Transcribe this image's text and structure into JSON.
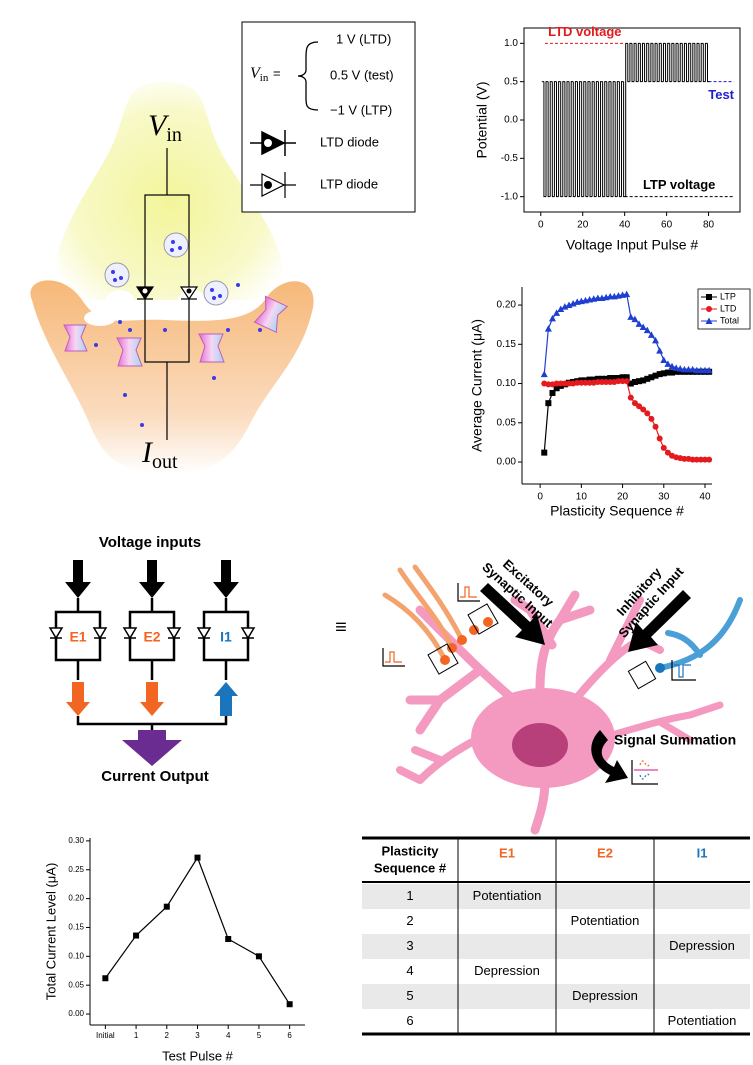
{
  "chart_data": [
    {
      "type": "line",
      "step": true,
      "xlabel": "Voltage Input Pulse #",
      "ylabel": "Potential (V)",
      "xlim": [
        -8,
        95
      ],
      "ylim": [
        -1.2,
        1.2
      ],
      "xticks": [
        0,
        20,
        40,
        60,
        80
      ],
      "yticks": [
        {
          "value": -1,
          "label": "-1.0"
        },
        -0.5,
        {
          "value": 0,
          "label": "0.0"
        },
        0.5,
        {
          "value": 1,
          "label": "1.0"
        }
      ],
      "x": [
        1,
        2,
        3,
        4,
        5,
        6,
        7,
        8,
        9,
        10,
        11,
        12,
        13,
        14,
        15,
        16,
        17,
        18,
        19,
        20,
        21,
        22,
        23,
        24,
        25,
        26,
        27,
        28,
        29,
        30,
        31,
        32,
        33,
        34,
        35,
        36,
        37,
        38,
        39,
        40,
        41,
        42,
        43,
        44,
        45,
        46,
        47,
        48,
        49,
        50,
        51,
        52,
        53,
        54,
        55,
        56,
        57,
        58,
        59,
        60,
        61,
        62,
        63,
        64,
        65,
        66,
        67,
        68,
        69,
        70,
        71,
        72,
        73,
        74,
        75,
        76,
        77,
        78,
        79,
        80
      ],
      "series": [
        {
          "color": "#000000",
          "values": [
            0.5,
            -1,
            0.5,
            -1,
            0.5,
            -1,
            0.5,
            -1,
            0.5,
            -1,
            0.5,
            -1,
            0.5,
            -1,
            0.5,
            -1,
            0.5,
            -1,
            0.5,
            -1,
            0.5,
            -1,
            0.5,
            -1,
            0.5,
            -1,
            0.5,
            -1,
            0.5,
            -1,
            0.5,
            -1,
            0.5,
            -1,
            0.5,
            -1,
            0.5,
            -1,
            0.5,
            -1,
            1,
            0.5,
            1,
            0.5,
            1,
            0.5,
            1,
            0.5,
            1,
            0.5,
            1,
            0.5,
            1,
            0.5,
            1,
            0.5,
            1,
            0.5,
            1,
            0.5,
            1,
            0.5,
            1,
            0.5,
            1,
            0.5,
            1,
            0.5,
            1,
            0.5,
            1,
            0.5,
            1,
            0.5,
            1,
            0.5,
            1,
            0.5,
            1,
            0.5
          ]
        }
      ],
      "reference_lines": [
        {
          "text": "LTD voltage",
          "y": 1,
          "x": [
            2,
            40
          ],
          "color": "#e31a1c"
        },
        {
          "text": "Test",
          "y": 0.5,
          "x": [
            80,
            92
          ],
          "color": "#1f1fd0"
        },
        {
          "text": "LTP voltage",
          "y": -1,
          "x": [
            40,
            92
          ],
          "color": "#000000"
        }
      ]
    },
    {
      "type": "line",
      "xlabel": "Plasticity Sequence #",
      "ylabel": "Average Current (μA)",
      "xlim": [
        -4.4,
        41.7
      ],
      "ylim": [
        -0.028,
        0.223
      ],
      "xticks": [
        0,
        10,
        20,
        30,
        40
      ],
      "yticks": [
        {
          "value": 0,
          "label": "0.00"
        },
        {
          "value": 0.05,
          "label": "0.05"
        },
        {
          "value": 0.1,
          "label": "0.10"
        },
        {
          "value": 0.15,
          "label": "0.15"
        },
        {
          "value": 0.2,
          "label": "0.20"
        }
      ],
      "legend": "upper right",
      "x": [
        1,
        2,
        3,
        4,
        5,
        6,
        7,
        8,
        9,
        10,
        11,
        12,
        13,
        14,
        15,
        16,
        17,
        18,
        19,
        20,
        21,
        22,
        23,
        24,
        25,
        26,
        27,
        28,
        29,
        30,
        31,
        32,
        33,
        34,
        35,
        36,
        37,
        38,
        39,
        40,
        41
      ],
      "series": [
        {
          "name": "LTP",
          "color": "#000000",
          "marker": "square",
          "values": [
            0.012,
            0.075,
            0.088,
            0.094,
            0.097,
            0.099,
            0.101,
            0.102,
            0.103,
            0.104,
            0.104,
            0.105,
            0.105,
            0.106,
            0.106,
            0.106,
            0.107,
            0.107,
            0.107,
            0.108,
            0.108,
            0.1,
            0.102,
            0.103,
            0.104,
            0.106,
            0.108,
            0.11,
            0.112,
            0.113,
            0.114,
            0.114,
            0.115,
            0.115,
            0.115,
            0.115,
            0.115,
            0.115,
            0.115,
            0.115,
            0.115
          ]
        },
        {
          "name": "LTD",
          "color": "#e41a1c",
          "marker": "circle",
          "values": [
            0.1,
            0.099,
            0.099,
            0.1,
            0.1,
            0.1,
            0.1,
            0.1,
            0.101,
            0.101,
            0.101,
            0.101,
            0.101,
            0.102,
            0.102,
            0.102,
            0.102,
            0.102,
            0.103,
            0.103,
            0.103,
            0.082,
            0.075,
            0.071,
            0.067,
            0.062,
            0.055,
            0.045,
            0.03,
            0.018,
            0.012,
            0.008,
            0.006,
            0.005,
            0.004,
            0.004,
            0.003,
            0.003,
            0.003,
            0.003,
            0.003
          ]
        },
        {
          "name": "Total",
          "color": "#1f3fd0",
          "marker": "triangle",
          "values": [
            0.112,
            0.17,
            0.183,
            0.19,
            0.195,
            0.198,
            0.2,
            0.202,
            0.204,
            0.205,
            0.206,
            0.207,
            0.208,
            0.209,
            0.209,
            0.21,
            0.211,
            0.211,
            0.212,
            0.213,
            0.214,
            0.185,
            0.182,
            0.176,
            0.172,
            0.168,
            0.162,
            0.155,
            0.142,
            0.13,
            0.125,
            0.122,
            0.12,
            0.119,
            0.118,
            0.118,
            0.118,
            0.117,
            0.117,
            0.117,
            0.117
          ]
        }
      ]
    },
    {
      "type": "line",
      "xlabel": "Test Pulse #",
      "ylabel": "Total Current Level (μA)",
      "ylim": [
        -0.019,
        0.305
      ],
      "yticks": [
        {
          "value": 0,
          "label": "0.00"
        },
        {
          "value": 0.05,
          "label": "0.05"
        },
        {
          "value": 0.1,
          "label": "0.10"
        },
        {
          "value": 0.15,
          "label": "0.15"
        },
        {
          "value": 0.2,
          "label": "0.20"
        },
        {
          "value": 0.25,
          "label": "0.25"
        },
        {
          "value": 0.3,
          "label": "0.30"
        }
      ],
      "categories": [
        "Initial",
        "1",
        "2",
        "3",
        "4",
        "5",
        "6"
      ],
      "series": [
        {
          "color": "#000000",
          "marker": "square",
          "values": [
            0.062,
            0.136,
            0.186,
            0.271,
            0.13,
            0.1,
            0.017
          ]
        }
      ]
    }
  ],
  "synapse": {
    "v_in": {
      "symbol": "V",
      "subscript": "in"
    },
    "i_out": {
      "symbol": "I",
      "subscript": "out"
    }
  },
  "key": {
    "v_in": {
      "symbol": "V",
      "subscript": "in"
    },
    "equals": "=",
    "levels": [
      "1 V (LTD)",
      "0.5 V (test)",
      "−1 V (LTP)"
    ],
    "diodes": [
      "LTD diode",
      "LTP diode"
    ]
  },
  "circuit": {
    "title": "Voltage inputs",
    "branches": [
      {
        "label": "E1",
        "color": "#f26522"
      },
      {
        "label": "E2",
        "color": "#f26522"
      },
      {
        "label": "I1",
        "color": "#1b75bc"
      }
    ],
    "output": "Current Output",
    "output_color": "#6a2c91"
  },
  "equivalence": "≡",
  "neuron": {
    "excitatory": [
      "Excitatory",
      "Synaptic Input"
    ],
    "inhibitory": [
      "Inhibitory",
      "Synaptic Input"
    ],
    "summation": "Signal Summation"
  },
  "table": {
    "header": [
      [
        "Plasticity",
        "Sequence #"
      ],
      "E1",
      "E2",
      "I1"
    ],
    "header_colors": [
      "#000000",
      "#f26522",
      "#f26522",
      "#1b75bc"
    ],
    "rows": [
      [
        "1",
        "Potentiation",
        null,
        null
      ],
      [
        "2",
        null,
        "Potentiation",
        null
      ],
      [
        "3",
        null,
        null,
        "Depression"
      ],
      [
        "4",
        "Depression",
        null,
        null
      ],
      [
        "5",
        null,
        "Depression",
        null
      ],
      [
        "6",
        null,
        null,
        "Potentiation"
      ]
    ]
  }
}
